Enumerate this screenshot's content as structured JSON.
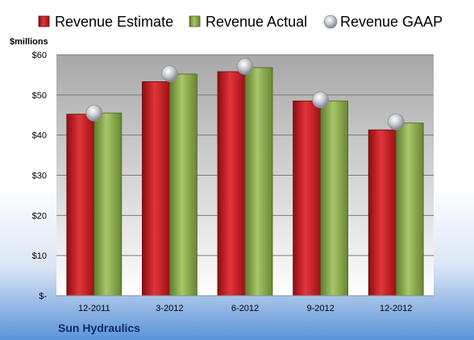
{
  "chart_data": {
    "type": "bar",
    "title": "",
    "ylabel": "$millions",
    "xlabel": "",
    "company": "Sun Hydraulics",
    "categories": [
      "12-2011",
      "3-2012",
      "6-2012",
      "9-2012",
      "12-2012"
    ],
    "series": [
      {
        "name": "Revenue Estimate",
        "kind": "bar",
        "color": "#cc1f25",
        "values": [
          45.2,
          53.3,
          55.8,
          48.5,
          41.3
        ]
      },
      {
        "name": "Revenue Actual",
        "kind": "bar",
        "color": "#8cab4f",
        "values": [
          45.5,
          55.2,
          56.8,
          48.5,
          43.0
        ]
      },
      {
        "name": "Revenue GAAP",
        "kind": "marker",
        "color": "#b8bcc4",
        "values": [
          45.5,
          55.3,
          57.1,
          48.8,
          43.3
        ]
      }
    ],
    "ylim": [
      0,
      60
    ],
    "y_ticks": [
      {
        "value": 0,
        "label": "$-"
      },
      {
        "value": 10,
        "label": "$10"
      },
      {
        "value": 20,
        "label": "$20"
      },
      {
        "value": 30,
        "label": "$30"
      },
      {
        "value": 40,
        "label": "$40"
      },
      {
        "value": 50,
        "label": "$50"
      },
      {
        "value": 60,
        "label": "$60"
      }
    ],
    "grid": true,
    "legend_position": "top"
  }
}
